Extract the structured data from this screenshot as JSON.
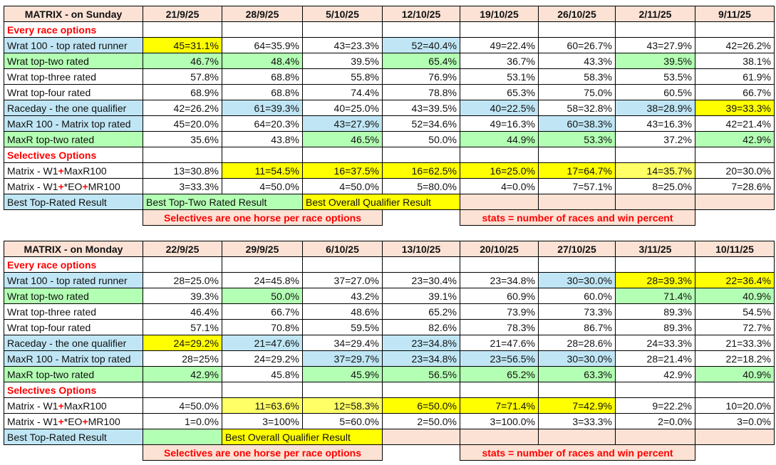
{
  "colors": {
    "y": "#ffff00",
    "ly": "#ffff66",
    "b": "#c0e6f5",
    "g": "#b3ffb3",
    "p": "#fbe2d5",
    "": "#ffffff"
  },
  "tables": [
    {
      "title": "MATRIX - on Sunday",
      "dates": [
        "21/9/25",
        "28/9/25",
        "5/10/25",
        "12/10/25",
        "19/10/25",
        "26/10/25",
        "2/11/25",
        "9/11/25"
      ],
      "rows": [
        {
          "section": "Every race options"
        },
        {
          "label_parts": [
            "Wrat 100 - top rated runner"
          ],
          "label_fill": "b",
          "values": [
            "45=31.1%",
            "64=35.9%",
            "43=23.3%",
            "52=40.4%",
            "49=22.4%",
            "60=26.7%",
            "43=27.9%",
            "42=26.2%"
          ],
          "fills": [
            "y",
            "",
            "",
            "b",
            "",
            "",
            "",
            ""
          ]
        },
        {
          "label_parts": [
            "Wrat top-two rated"
          ],
          "label_fill": "g",
          "values": [
            "46.7%",
            "48.4%",
            "39.5%",
            "65.4%",
            "36.7%",
            "43.3%",
            "39.5%",
            "38.1%"
          ],
          "fills": [
            "g",
            "g",
            "",
            "g",
            "",
            "",
            "g",
            ""
          ]
        },
        {
          "label_parts": [
            "Wrat top-three rated"
          ],
          "label_fill": "",
          "values": [
            "57.8%",
            "68.8%",
            "55.8%",
            "76.9%",
            "53.1%",
            "58.3%",
            "53.5%",
            "61.9%"
          ],
          "fills": [
            "",
            "",
            "",
            "",
            "",
            "",
            "",
            ""
          ]
        },
        {
          "label_parts": [
            "Wrat top-four rated"
          ],
          "label_fill": "",
          "values": [
            "68.9%",
            "68.8%",
            "74.4%",
            "78.8%",
            "65.3%",
            "75.0%",
            "60.5%",
            "66.7%"
          ],
          "fills": [
            "",
            "",
            "",
            "",
            "",
            "",
            "",
            ""
          ]
        },
        {
          "label_parts": [
            "Raceday - the one qualifier"
          ],
          "label_fill": "b",
          "values": [
            "42=26.2%",
            "61=39.3%",
            "40=25.0%",
            "43=39.5%",
            "40=22.5%",
            "58=32.8%",
            "38=28.9%",
            "39=33.3%"
          ],
          "fills": [
            "",
            "b",
            "",
            "",
            "b",
            "",
            "b",
            "y"
          ]
        },
        {
          "label_parts": [
            "MaxR 100 - Matrix top rated"
          ],
          "label_fill": "b",
          "values": [
            "45=20.0%",
            "64=20.3%",
            "43=27.9%",
            "52=34.6%",
            "49=16.3%",
            "60=38.3%",
            "43=16.3%",
            "42=21.4%"
          ],
          "fills": [
            "",
            "",
            "b",
            "",
            "",
            "b",
            "",
            ""
          ]
        },
        {
          "label_parts": [
            "MaxR top-two rated"
          ],
          "label_fill": "g",
          "values": [
            "35.6%",
            "43.8%",
            "46.5%",
            "50.0%",
            "44.9%",
            "53.3%",
            "37.2%",
            "42.9%"
          ],
          "fills": [
            "",
            "",
            "g",
            "",
            "g",
            "g",
            "",
            "g"
          ]
        },
        {
          "section": "Selectives Options"
        },
        {
          "label_parts": [
            "Matrix - W1",
            "+",
            "MaxR100"
          ],
          "label_fill": "",
          "values": [
            "13=30.8%",
            "11=54.5%",
            "16=37.5%",
            "16=62.5%",
            "16=25.0%",
            "17=64.7%",
            "14=35.7%",
            "20=30.0%"
          ],
          "fills": [
            "",
            "y",
            "y",
            "y",
            "y",
            "y",
            "ly",
            ""
          ]
        },
        {
          "label_parts": [
            "Matrix - W1",
            "+",
            "*EO",
            "+",
            "MR100"
          ],
          "label_fill": "",
          "values": [
            "3=33.3%",
            "4=50.0%",
            "4=50.0%",
            "5=80.0%",
            "4=0.0%",
            "7=57.1%",
            "8=25.0%",
            "7=28.6%"
          ],
          "fills": [
            "",
            "",
            "",
            "",
            "",
            "",
            "",
            ""
          ]
        }
      ],
      "legend_label": "Best Top-Rated Result",
      "legend": [
        {
          "text": "Best Top-Two Rated Result",
          "colspan": 2,
          "fill": "g"
        },
        {
          "text": "Best Overall Qualifier Result",
          "colspan": 2,
          "fill": "y"
        },
        {
          "text": "",
          "colspan": 1,
          "fill": "p"
        },
        {
          "text": "",
          "colspan": 1,
          "fill": "p"
        },
        {
          "text": "",
          "colspan": 1,
          "fill": "p"
        },
        {
          "text": "",
          "colspan": 1,
          "fill": "p"
        }
      ],
      "footer": [
        {
          "text": "",
          "colspan": 1,
          "blank": true
        },
        {
          "text": "Selectives are one horse per race options",
          "colspan": 3
        },
        {
          "text": "",
          "colspan": 1,
          "blank": true
        },
        {
          "text": "stats = number of races and win percent",
          "colspan": 3
        },
        {
          "text": "",
          "colspan": 1,
          "blank": true
        }
      ]
    },
    {
      "title": "MATRIX - on Monday",
      "dates": [
        "22/9/25",
        "29/9/25",
        "6/10/25",
        "13/10/25",
        "20/10/25",
        "27/10/25",
        "3/11/25",
        "10/11/25"
      ],
      "rows": [
        {
          "section": "Every race options"
        },
        {
          "label_parts": [
            "Wrat 100 - top rated runner"
          ],
          "label_fill": "b",
          "values": [
            "28=25.0%",
            "24=45.8%",
            "37=27.0%",
            "23=30.4%",
            "23=34.8%",
            "30=30.0%",
            "28=39.3%",
            "22=36.4%"
          ],
          "fills": [
            "",
            "",
            "",
            "",
            "",
            "b",
            "y",
            "y"
          ]
        },
        {
          "label_parts": [
            "Wrat top-two rated"
          ],
          "label_fill": "g",
          "values": [
            "39.3%",
            "50.0%",
            "43.2%",
            "39.1%",
            "60.9%",
            "60.0%",
            "71.4%",
            "40.9%"
          ],
          "fills": [
            "",
            "g",
            "",
            "",
            "",
            "",
            "g",
            "g"
          ]
        },
        {
          "label_parts": [
            "Wrat top-three rated"
          ],
          "label_fill": "",
          "values": [
            "46.4%",
            "66.7%",
            "48.6%",
            "65.2%",
            "73.9%",
            "73.3%",
            "89.3%",
            "54.5%"
          ],
          "fills": [
            "",
            "",
            "",
            "",
            "",
            "",
            "",
            ""
          ]
        },
        {
          "label_parts": [
            "Wrat top-four rated"
          ],
          "label_fill": "",
          "values": [
            "57.1%",
            "70.8%",
            "59.5%",
            "82.6%",
            "78.3%",
            "86.7%",
            "89.3%",
            "72.7%"
          ],
          "fills": [
            "",
            "",
            "",
            "",
            "",
            "",
            "",
            ""
          ]
        },
        {
          "label_parts": [
            "Raceday - the one qualifier"
          ],
          "label_fill": "b",
          "values": [
            "24=29.2%",
            "21=47.6%",
            "34=29.4%",
            "23=34.8%",
            "21=47.6%",
            "28=28.6%",
            "24=33.3%",
            "21=33.3%"
          ],
          "fills": [
            "y",
            "b",
            "",
            "b",
            "",
            "",
            "",
            ""
          ]
        },
        {
          "label_parts": [
            "MaxR 100 - Matrix top rated"
          ],
          "label_fill": "b",
          "values": [
            "28=25%",
            "24=29.2%",
            "37=29.7%",
            "23=34.8%",
            "23=56.5%",
            "30=30.0%",
            "28=21.4%",
            "22=18.2%"
          ],
          "fills": [
            "",
            "",
            "b",
            "b",
            "b",
            "b",
            "",
            ""
          ]
        },
        {
          "label_parts": [
            "MaxR top-two rated"
          ],
          "label_fill": "g",
          "values": [
            "42.9%",
            "45.8%",
            "45.9%",
            "56.5%",
            "65.2%",
            "63.3%",
            "42.9%",
            "40.9%"
          ],
          "fills": [
            "g",
            "",
            "g",
            "g",
            "g",
            "g",
            "",
            "g"
          ]
        },
        {
          "section": "Selectives Options"
        },
        {
          "label_parts": [
            "Matrix - W1",
            "+",
            "MaxR100"
          ],
          "label_fill": "",
          "values": [
            "4=50.0%",
            "11=63.6%",
            "12=58.3%",
            "6=50.0%",
            "7=71.4%",
            "7=42.9%",
            "9=22.2%",
            "10=20.0%"
          ],
          "fills": [
            "",
            "ly",
            "ly",
            "y",
            "y",
            "y",
            "",
            ""
          ]
        },
        {
          "label_parts": [
            "Matrix - W1",
            "+",
            "*EO",
            "+",
            "MR100"
          ],
          "label_fill": "",
          "values": [
            "1=0.0%",
            "3=100%",
            "5=60.0%",
            "2=50.0%",
            "3=100.0%",
            "3=33.3%",
            "2=0.0%",
            "3=0.0%"
          ],
          "fills": [
            "",
            "",
            "",
            "",
            "",
            "",
            "",
            ""
          ]
        }
      ],
      "legend_label": "Best Top-Rated Result",
      "legend": [
        {
          "text": "",
          "colspan": 1,
          "fill": "g"
        },
        {
          "text": "Best Overall Qualifier Result",
          "colspan": 2,
          "fill": "y"
        },
        {
          "text": "",
          "colspan": 1,
          "fill": "p"
        },
        {
          "text": "",
          "colspan": 1,
          "fill": "p"
        },
        {
          "text": "",
          "colspan": 1,
          "fill": "p"
        },
        {
          "text": "",
          "colspan": 1,
          "fill": "p"
        },
        {
          "text": "",
          "colspan": 1,
          "fill": "p"
        }
      ],
      "footer": [
        {
          "text": "",
          "colspan": 1,
          "blank": true
        },
        {
          "text": "Selectives are one horse per race options",
          "colspan": 3
        },
        {
          "text": "",
          "colspan": 1,
          "blank": true
        },
        {
          "text": "stats = number of races and win percent",
          "colspan": 3
        },
        {
          "text": "",
          "colspan": 1,
          "blank": true
        }
      ]
    }
  ]
}
